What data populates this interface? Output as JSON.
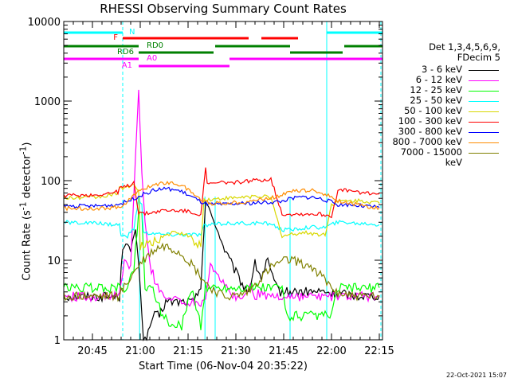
{
  "chart_data": {
    "type": "line",
    "title": "RHESSI Observing Summary Count Rates",
    "xlabel": "Start Time (06-Nov-04 20:35:22)",
    "ylabel_main": "Count Rate (s",
    "ylabel_sup1": "-1",
    "ylabel_mid": " detector",
    "ylabel_sup2": "-1",
    "ylabel_end": ")",
    "xlim_min": [
      0,
      100
    ],
    "yscale": "log",
    "ylim": [
      1,
      10000
    ],
    "x_ticks": [
      {
        "m": 9,
        "label": "20:45"
      },
      {
        "m": 24,
        "label": "21:00"
      },
      {
        "m": 39,
        "label": "21:15"
      },
      {
        "m": 54,
        "label": "21:30"
      },
      {
        "m": 69,
        "label": "21:45"
      },
      {
        "m": 84,
        "label": "22:00"
      },
      {
        "m": 99,
        "label": "22:15"
      }
    ],
    "y_ticks": [
      {
        "v": 1,
        "label": "1"
      },
      {
        "v": 10,
        "label": "10"
      },
      {
        "v": 100,
        "label": "100"
      },
      {
        "v": 1000,
        "label": "1000"
      },
      {
        "v": 10000,
        "label": "10000"
      }
    ],
    "detectors": "Det 1,3,4,5,6,9,",
    "decim": "FDecim 5",
    "legend_position": "right",
    "series": [
      {
        "name": "3 - 6 keV",
        "color": "#000000",
        "x": [
          0,
          17.5,
          18.5,
          19.5,
          21,
          22.5,
          24,
          25,
          26,
          28,
          30,
          32,
          34,
          36,
          38,
          41,
          43,
          44.5,
          46,
          48,
          50,
          52,
          54,
          56,
          58,
          60,
          62,
          64,
          66,
          68,
          70,
          72,
          74,
          76,
          78,
          80,
          82,
          84,
          86,
          88,
          90,
          92,
          94,
          96,
          99
        ],
        "y": [
          3.5,
          3.5,
          15,
          18,
          12,
          25,
          5,
          1,
          1,
          2,
          2,
          3,
          3,
          3,
          3,
          3,
          5,
          55,
          40,
          25,
          15,
          10,
          7,
          5,
          4,
          9,
          6,
          10,
          5,
          4,
          4,
          4,
          4,
          4,
          4,
          4,
          4,
          3.8,
          3.8,
          3.8,
          3.6,
          3.6,
          3.6,
          3.6,
          3.6
        ]
      },
      {
        "name": "6 - 12 keV",
        "color": "#ff00ff",
        "x": [
          0,
          17.5,
          19,
          21,
          22.5,
          23.5,
          24.5,
          25.5,
          27,
          29,
          31,
          33,
          35,
          37,
          39,
          41,
          43,
          44.5,
          46,
          48,
          50,
          52,
          54,
          56,
          58,
          60,
          62,
          64,
          66,
          68,
          70,
          72,
          74,
          76,
          78,
          80,
          82,
          84,
          86,
          88,
          90,
          92,
          94,
          99
        ],
        "y": [
          3.5,
          3.5,
          10,
          8,
          200,
          1400,
          120,
          30,
          9,
          5,
          4,
          3,
          3.5,
          3,
          3,
          3,
          3,
          3.5,
          9,
          7,
          5,
          4,
          3.5,
          3,
          5,
          3.5,
          4,
          3.5,
          3.5,
          3.5,
          3.5,
          3.5,
          3.5,
          3.5,
          3.5,
          3.5,
          3.5,
          3.5,
          3.5,
          3.5,
          3.5,
          3.5,
          3.5,
          3.5
        ]
      },
      {
        "name": "12 - 25 keV",
        "color": "#00ff00",
        "x": [
          0,
          17.5,
          20,
          22,
          23.5,
          24.5,
          25.5,
          28,
          31,
          34,
          37,
          40,
          43,
          44.5,
          46,
          50,
          54,
          58,
          62,
          66,
          68.5,
          70,
          74,
          78,
          82,
          84,
          86,
          90,
          94,
          99
        ],
        "y": [
          4.5,
          4.5,
          4.5,
          8,
          40,
          40,
          4.5,
          4.5,
          2,
          1.5,
          1.5,
          4.5,
          1.5,
          4.5,
          4.5,
          4.5,
          4.5,
          4.5,
          4.5,
          4.5,
          4.5,
          2,
          2,
          2,
          2,
          2,
          4.5,
          4.5,
          4.5,
          4.5
        ]
      },
      {
        "name": "25 - 50 keV",
        "color": "#00ffff",
        "x": [
          0,
          10,
          17.5,
          18,
          20,
          22,
          23.5,
          24.5,
          25,
          28,
          31,
          34,
          37,
          40,
          43,
          44,
          47,
          50,
          53,
          56,
          59,
          62,
          65,
          68.5,
          71,
          74,
          77,
          80,
          82,
          84,
          86,
          89,
          92,
          95,
          99
        ],
        "y": [
          30,
          29,
          28,
          20,
          20,
          25,
          60,
          50,
          22,
          22,
          21,
          21,
          21,
          21,
          21,
          27,
          28,
          29,
          29,
          29,
          29,
          29,
          29,
          24,
          24,
          25,
          26,
          26,
          26,
          28,
          30,
          30,
          29,
          29,
          28
        ]
      },
      {
        "name": "50 - 100 keV",
        "color": "#d8d800",
        "x": [
          0,
          10,
          17,
          17.5,
          20,
          22,
          23.5,
          24,
          25,
          28,
          31,
          34,
          37,
          40,
          43,
          44,
          47,
          50,
          53,
          56,
          59,
          62,
          65,
          68.5,
          71,
          74,
          77,
          80,
          82,
          84,
          86,
          89,
          92,
          95,
          99
        ],
        "y": [
          60,
          62,
          68,
          80,
          85,
          90,
          70,
          15,
          15,
          17,
          20,
          22,
          22,
          19,
          15,
          58,
          58,
          60,
          60,
          62,
          63,
          64,
          60,
          20,
          21,
          22,
          22,
          21,
          21,
          50,
          55,
          55,
          56,
          55,
          52
        ]
      },
      {
        "name": "100 - 300 keV",
        "color": "#ff0000",
        "x": [
          0,
          10,
          17,
          17.5,
          20,
          22,
          23.5,
          24,
          25,
          28,
          31,
          34,
          37,
          40,
          43,
          44,
          44.5,
          45,
          47,
          50,
          53,
          56,
          59,
          62,
          65,
          68.5,
          71,
          74,
          77,
          80,
          82,
          84,
          86,
          89,
          92,
          95,
          99
        ],
        "y": [
          65,
          66,
          72,
          80,
          85,
          95,
          40,
          40,
          38,
          40,
          42,
          42,
          42,
          40,
          38,
          95,
          140,
          90,
          92,
          95,
          95,
          97,
          100,
          102,
          105,
          38,
          38,
          38,
          38,
          38,
          37,
          36,
          75,
          75,
          72,
          70,
          68
        ]
      },
      {
        "name": "300 - 800 keV",
        "color": "#0000ff",
        "x": [
          0,
          10,
          17,
          18,
          20,
          22,
          24,
          26,
          28,
          30,
          32,
          34,
          36,
          38,
          40,
          42,
          44,
          46,
          50,
          54,
          58,
          62,
          66,
          68.5,
          70,
          74,
          78,
          80,
          82,
          84,
          86,
          90,
          94,
          99
        ],
        "y": [
          48,
          48,
          50,
          52,
          55,
          60,
          65,
          70,
          75,
          78,
          79,
          78,
          75,
          70,
          63,
          57,
          52,
          50,
          50,
          51,
          52,
          53,
          54,
          55,
          58,
          62,
          62,
          60,
          57,
          54,
          50,
          50,
          48,
          46
        ]
      },
      {
        "name": "800 - 7000 keV",
        "color": "#ff8c00",
        "x": [
          0,
          10,
          17,
          18,
          20,
          22,
          24,
          26,
          28,
          30,
          32,
          34,
          36,
          38,
          40,
          42,
          44,
          46,
          50,
          54,
          58,
          62,
          66,
          68.5,
          70,
          74,
          78,
          80,
          82,
          84,
          86,
          90,
          94,
          99
        ],
        "y": [
          45,
          45,
          46,
          48,
          55,
          65,
          75,
          82,
          88,
          92,
          95,
          93,
          90,
          82,
          72,
          62,
          55,
          52,
          52,
          53,
          55,
          58,
          62,
          67,
          72,
          75,
          75,
          72,
          68,
          62,
          56,
          52,
          48,
          45
        ]
      },
      {
        "name": "7000 - 15000 keV",
        "color": "#808000",
        "x": [
          0,
          10,
          17,
          19,
          21,
          23,
          24,
          26,
          28,
          30,
          32,
          34,
          36,
          38,
          40,
          42,
          44,
          46,
          50,
          54,
          58,
          62,
          65,
          68,
          71,
          74,
          77,
          80,
          82,
          84,
          86,
          90,
          94,
          99
        ],
        "y": [
          3.5,
          3.5,
          3.5,
          4.5,
          6,
          8,
          9,
          11,
          13,
          14.5,
          15,
          14,
          13,
          11,
          9,
          7,
          5.5,
          4.5,
          3.5,
          3.5,
          4,
          6,
          8,
          9.5,
          10,
          9.5,
          8.5,
          7,
          5.5,
          4.5,
          4,
          3.6,
          3.5,
          3.5
        ]
      }
    ],
    "flag_bars": [
      {
        "label": "N",
        "color": "#00ffff",
        "segments": [
          [
            0,
            18.5
          ],
          [
            82.5,
            100
          ]
        ],
        "label_x": 20,
        "label_side": "right"
      },
      {
        "label": "F",
        "color": "#ff0000",
        "segments": [
          [
            18.5,
            58
          ],
          [
            62,
            73.5
          ]
        ],
        "label_x": 17.5,
        "label_side": "left"
      },
      {
        "label": "RD0",
        "color": "#008000",
        "segments": [
          [
            0,
            23.5
          ],
          [
            47.5,
            71
          ],
          [
            88,
            100
          ]
        ],
        "label_x": 25.5,
        "label_side": "right"
      },
      {
        "label": "RD6",
        "color": "#008000",
        "segments": [
          [
            23.5,
            47
          ],
          [
            71,
            87.5
          ]
        ],
        "label_x": 22.5,
        "label_side": "left"
      },
      {
        "label": "A0",
        "color": "#ff00ff",
        "segments": [
          [
            0,
            23.5
          ],
          [
            52,
            100
          ]
        ],
        "label_x": 25.5,
        "label_side": "right"
      },
      {
        "label": "A1",
        "color": "#ff00ff",
        "segments": [
          [
            23.5,
            52
          ]
        ],
        "label_x": 22,
        "label_side": "left"
      }
    ],
    "solid_vlines_min": [
      0,
      82.5
    ],
    "dashed_vlines_min": [
      18.5,
      99.5
    ],
    "event_vlines_min": [
      47.5,
      71,
      44.3,
      23.8
    ]
  },
  "timestamp": "22-Oct-2021 15:07"
}
